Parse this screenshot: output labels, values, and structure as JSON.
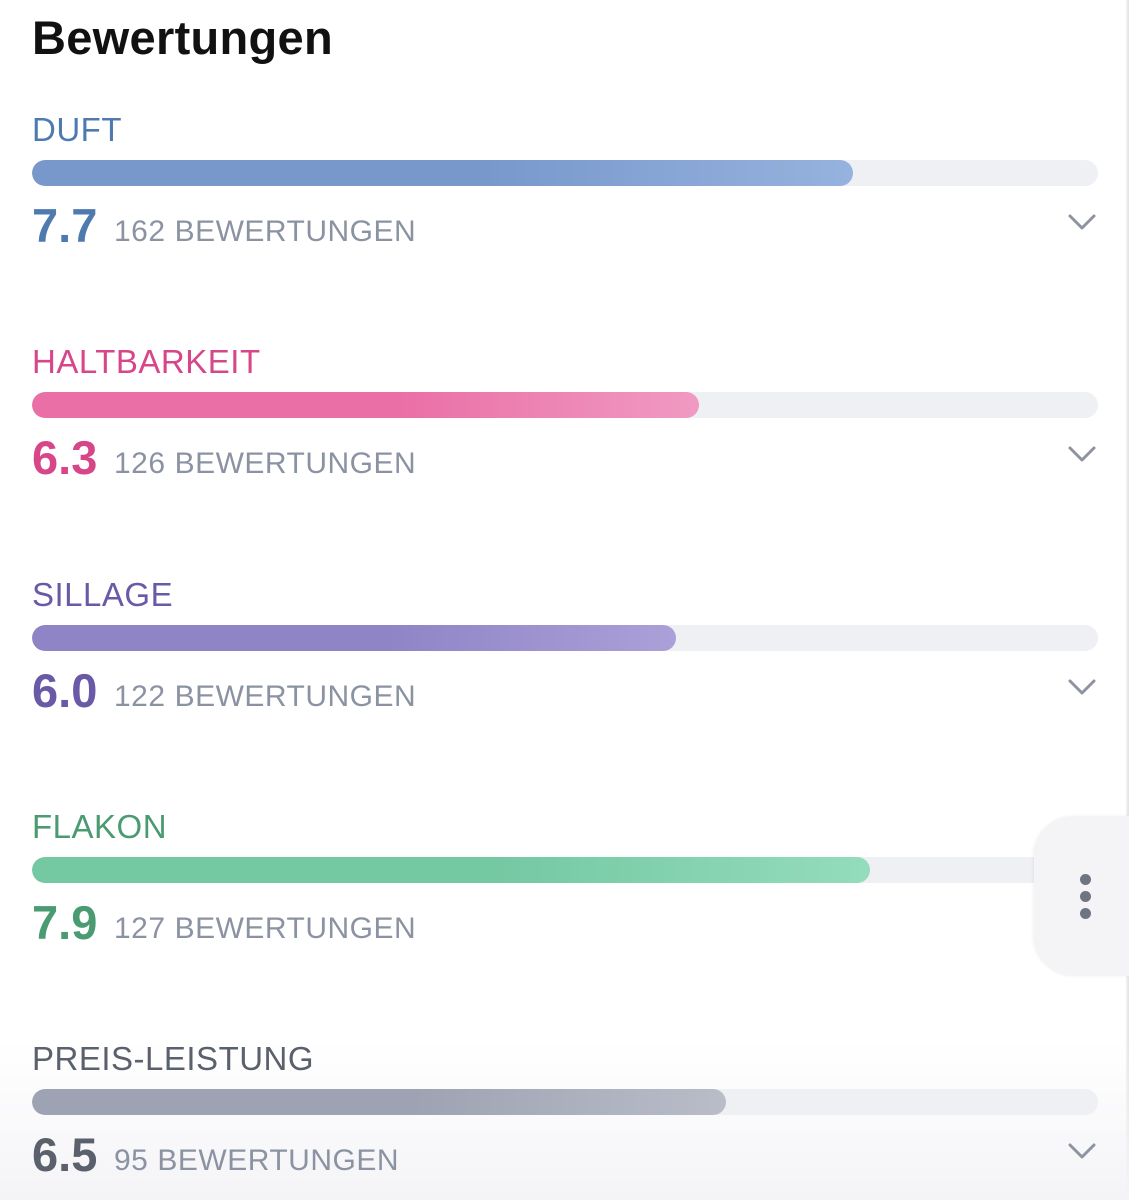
{
  "header": {
    "title": "Bewertungen"
  },
  "ratings": [
    {
      "label": "DUFT",
      "score": "7.7",
      "count": "162",
      "count_suffix": "BEWERTUNGEN",
      "fill_fraction": 0.77,
      "color_text": "#4f7ab0",
      "color_fill_start": "#7898cc",
      "color_fill_end": "#96b2de"
    },
    {
      "label": "HALTBARKEIT",
      "score": "6.3",
      "count": "126",
      "count_suffix": "BEWERTUNGEN",
      "fill_fraction": 0.626,
      "color_text": "#d8468a",
      "color_fill_start": "#ea6fa6",
      "color_fill_end": "#f09ac2"
    },
    {
      "label": "SILLAGE",
      "score": "6.0",
      "count": "122",
      "count_suffix": "BEWERTUNGEN",
      "fill_fraction": 0.604,
      "color_text": "#6a59a6",
      "color_fill_start": "#8f84c6",
      "color_fill_end": "#aca0d8"
    },
    {
      "label": "FLAKON",
      "score": "7.9",
      "count": "127",
      "count_suffix": "BEWERTUNGEN",
      "fill_fraction": 0.786,
      "color_text": "#4a9a72",
      "color_fill_start": "#74c8a2",
      "color_fill_end": "#94dcbc"
    },
    {
      "label": "PREIS-LEISTUNG",
      "score": "6.5",
      "count": "95",
      "count_suffix": "BEWERTUNGEN",
      "fill_fraction": 0.651,
      "color_text": "#5a606c",
      "color_fill_start": "#9da3b2",
      "color_fill_end": "#b8bdc8"
    }
  ],
  "icons": {
    "chevron": "chevron-down-icon",
    "more": "more-vertical-icon"
  }
}
